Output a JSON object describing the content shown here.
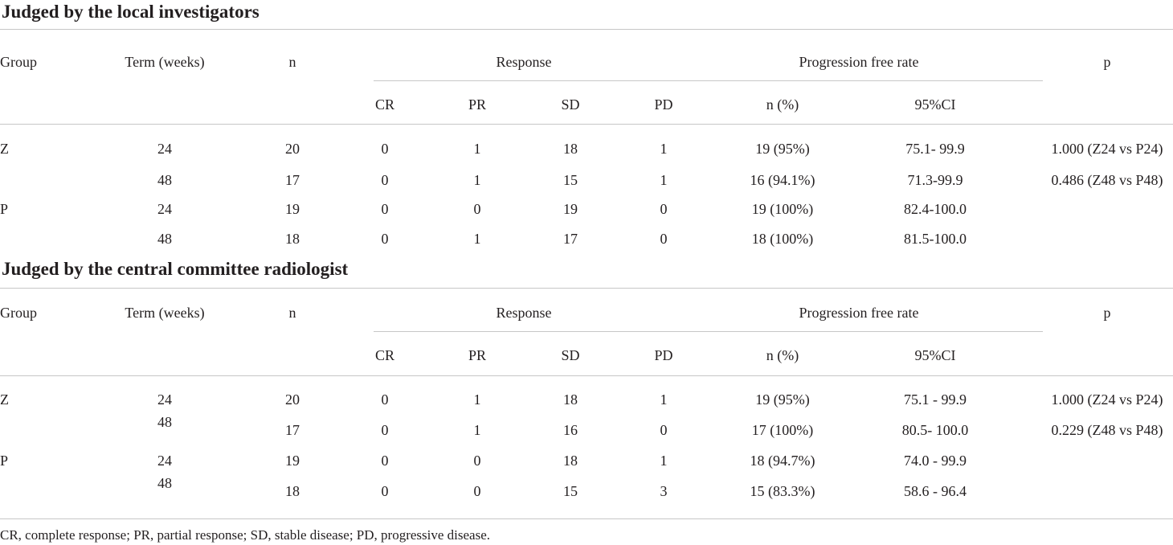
{
  "sections": [
    {
      "title": "Judged by the local investigators",
      "headers": {
        "group": "Group",
        "term": "Term (weeks)",
        "n": "n",
        "response": "Response",
        "pfr": "Progression free rate",
        "p": "p",
        "cr": "CR",
        "pr": "PR",
        "sd": "SD",
        "pd": "PD",
        "n_pct": "n (%)",
        "ci": "95%CI"
      },
      "rows": [
        {
          "group": "Z",
          "term": "24",
          "n": "20",
          "cr": "0",
          "pr": "1",
          "sd": "18",
          "pd": "1",
          "n_pct": "19 (95%)",
          "ci": "75.1- 99.9",
          "p": "1.000 (Z24 vs P24)"
        },
        {
          "group": "",
          "term": "48",
          "n": "17",
          "cr": "0",
          "pr": "1",
          "sd": "15",
          "pd": "1",
          "n_pct": "16 (94.1%)",
          "ci": "71.3-99.9",
          "p": "0.486 (Z48 vs P48)"
        },
        {
          "group": "P",
          "term": "24",
          "n": "19",
          "cr": "0",
          "pr": "0",
          "sd": "19",
          "pd": "0",
          "n_pct": "19 (100%)",
          "ci": "82.4-100.0",
          "p": ""
        },
        {
          "group": "",
          "term": "48",
          "n": "18",
          "cr": "0",
          "pr": "1",
          "sd": "17",
          "pd": "0",
          "n_pct": "18 (100%)",
          "ci": "81.5-100.0",
          "p": ""
        }
      ]
    },
    {
      "title": "Judged by the central committee radiologist",
      "headers": {
        "group": "Group",
        "term": "Term (weeks)",
        "n": "n",
        "response": "Response",
        "pfr": "Progression free rate",
        "p": "p",
        "cr": "CR",
        "pr": "PR",
        "sd": "SD",
        "pd": "PD",
        "n_pct": "n (%)",
        "ci": "95%CI"
      },
      "rows": [
        {
          "group": "Z",
          "term": "24",
          "n": "20",
          "cr": "0",
          "pr": "1",
          "sd": "18",
          "pd": "1",
          "n_pct": "19 (95%)",
          "ci": "75.1 - 99.9",
          "p": "1.000 (Z24 vs P24)"
        },
        {
          "group": "",
          "term": "48",
          "n": "17",
          "cr": "0",
          "pr": "1",
          "sd": "16",
          "pd": "0",
          "n_pct": "17 (100%)",
          "ci": "80.5- 100.0",
          "p": "0.229 (Z48 vs P48)"
        },
        {
          "group": "P",
          "term": "24",
          "n": "19",
          "cr": "0",
          "pr": "0",
          "sd": "18",
          "pd": "1",
          "n_pct": "18 (94.7%)",
          "ci": "74.0 - 99.9",
          "p": ""
        },
        {
          "group": "",
          "term": "48",
          "n": "18",
          "cr": "0",
          "pr": "0",
          "sd": "15",
          "pd": "3",
          "n_pct": "15 (83.3%)",
          "ci": "58.6 - 96.4",
          "p": ""
        }
      ]
    }
  ],
  "footnote": "CR, complete response; PR, partial response; SD, stable disease; PD, progressive disease."
}
